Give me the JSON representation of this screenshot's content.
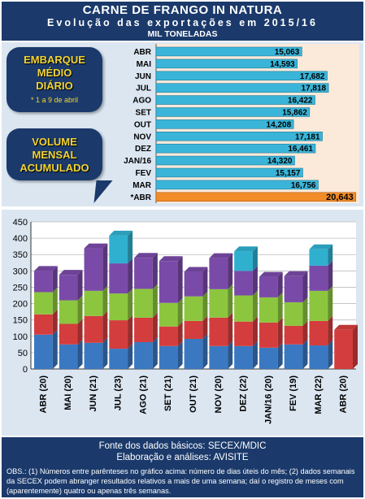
{
  "header": {
    "title": "CARNE DE FRANGO IN NATURA",
    "subtitle": "Evolução das exportações em 2015/16",
    "unit": "MIL TONELADAS"
  },
  "callouts": {
    "daily_label": [
      "EMBARQUE",
      "MÉDIO",
      "DIÁRIO"
    ],
    "daily_note": "* 1 a 9 de abril",
    "monthly_label": [
      "VOLUME",
      "MENSAL",
      "ACUMULADO"
    ]
  },
  "footer": {
    "source": "Fonte dos dados básicos: SECEX/MDIC",
    "credit": "Elaboração e análises: AVISITE",
    "obs": "OBS.: (1) Números entre parênteses no gráfico acima: número de dias úteis do mês; (2) dados semanais da SECEX podem abranger resultados relativos a mais de uma semana; daí o registro de meses com (aparentemente) quatro ou apenas três semanas."
  },
  "colors": {
    "header_bg": "#1b3a6b",
    "panel_bg": "#dbe6f1",
    "daily_bar": "#3ab5d9",
    "daily_highlight": "#f28c28",
    "week1": "#3a78c2",
    "week2": "#d43d3d",
    "week3": "#8cc63e",
    "week4": "#7a4aa8",
    "week5": "#2fb0cf"
  },
  "chart_data": [
    {
      "type": "bar",
      "orientation": "horizontal",
      "title": "EMBARQUE MÉDIO DIÁRIO",
      "categories": [
        "ABR",
        "MAI",
        "JUN",
        "JUL",
        "AGO",
        "SET",
        "OUT",
        "NOV",
        "DEZ",
        "JAN/16",
        "FEV",
        "MAR",
        "*ABR"
      ],
      "values": [
        15063,
        14593,
        17682,
        17818,
        16422,
        15862,
        14208,
        17181,
        16461,
        14320,
        15157,
        16756,
        20643
      ],
      "value_labels": [
        "15,063",
        "14,593",
        "17,682",
        "17,818",
        "16,422",
        "15,862",
        "14,208",
        "17,181",
        "16,461",
        "14,320",
        "15,157",
        "16,756",
        "20,643"
      ],
      "highlight_index": 12,
      "note": "* 1 a 9 de abril"
    },
    {
      "type": "bar",
      "stacked": true,
      "title": "VOLUME MENSAL ACUMULADO",
      "categories": [
        "ABR (20)",
        "MAI (20)",
        "JUN (21)",
        "JUL (23)",
        "AGO (21)",
        "SET (21)",
        "OUT (21)",
        "NOV (20)",
        "DEZ (22)",
        "JAN/16 (20)",
        "FEV (19)",
        "MAR (22)",
        "ABR (20)"
      ],
      "series": [
        {
          "values": [
            105,
            75,
            80,
            62,
            82,
            70,
            92,
            70,
            70,
            65,
            75,
            72,
            120
          ]
        },
        {
          "values": [
            62,
            63,
            82,
            87,
            75,
            60,
            55,
            87,
            75,
            77,
            57,
            75,
            0
          ]
        },
        {
          "values": [
            68,
            72,
            77,
            82,
            88,
            72,
            75,
            87,
            80,
            77,
            72,
            92,
            0
          ]
        },
        {
          "values": [
            65,
            78,
            130,
            92,
            95,
            128,
            75,
            95,
            75,
            63,
            80,
            77,
            0
          ]
        },
        {
          "values": [
            0,
            0,
            0,
            85,
            0,
            0,
            0,
            0,
            60,
            0,
            0,
            50,
            0
          ]
        }
      ],
      "y_ticks": [
        "0",
        "50",
        "100",
        "150",
        "200",
        "250",
        "300",
        "350",
        "400",
        "450"
      ],
      "ylim": [
        0,
        450
      ],
      "grid": true
    }
  ]
}
